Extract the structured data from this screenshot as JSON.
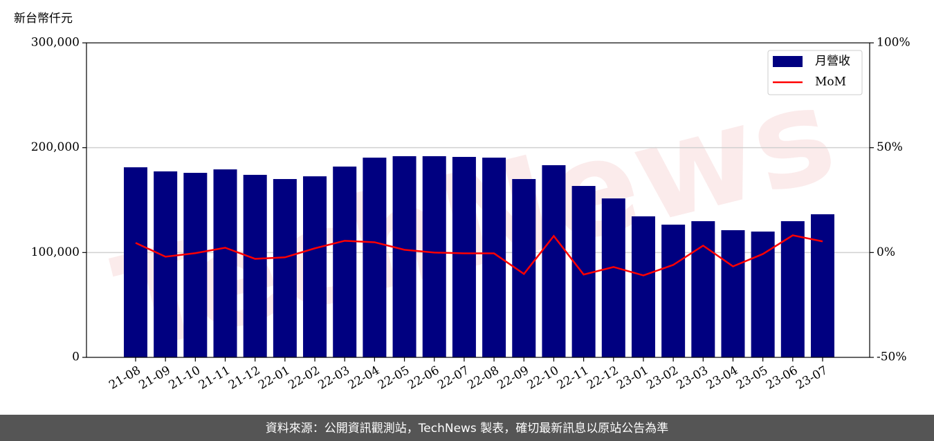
{
  "chart_data": {
    "type": "bar",
    "y_label": "新台幣仟元",
    "watermark": "TechNews",
    "categories": [
      "21-08",
      "21-09",
      "21-10",
      "21-11",
      "21-12",
      "22-01",
      "22-02",
      "22-03",
      "22-04",
      "22-05",
      "22-06",
      "22-07",
      "22-08",
      "22-09",
      "22-10",
      "22-11",
      "22-12",
      "23-01",
      "23-02",
      "23-03",
      "23-04",
      "23-05",
      "23-06",
      "23-07"
    ],
    "series": [
      {
        "name": "月營收",
        "color": "#000080",
        "type": "bar",
        "values": [
          181300,
          177400,
          176000,
          179300,
          174100,
          170100,
          172700,
          182000,
          190500,
          191900,
          191900,
          191200,
          190500,
          170100,
          183300,
          163500,
          151600,
          134500,
          126600,
          129900,
          121300,
          120000,
          129900,
          136500
        ]
      },
      {
        "name": "MoM",
        "color": "#ff0000",
        "type": "line",
        "axis": "y2",
        "values": [
          4.6,
          -2.0,
          -0.3,
          2.3,
          -3.0,
          -2.3,
          2.0,
          5.6,
          4.9,
          1.3,
          0,
          -0.4,
          -0.4,
          -10.2,
          7.9,
          -10.5,
          -6.9,
          -10.9,
          -5.9,
          3.3,
          -6.6,
          -0.7,
          8.2,
          5.3
        ]
      }
    ],
    "ylim": [
      0,
      300000
    ],
    "yticks": [
      0,
      {
        "value": 100000,
        "label": "100,000"
      },
      {
        "value": 200000,
        "label": "200,000"
      },
      {
        "value": 300000,
        "label": "300,000"
      }
    ],
    "y2lim": [
      -50,
      100
    ],
    "y2ticks": [
      {
        "value": -50,
        "label": "-50%"
      },
      {
        "value": 0,
        "label": "0%"
      },
      {
        "value": 50,
        "label": "50%"
      },
      {
        "value": 100,
        "label": "100%"
      }
    ],
    "grid": true,
    "legend": "upper right"
  },
  "footer": "資料來源：公開資訊觀測站，TechNews 製表，確切最新訊息以原站公告為準"
}
